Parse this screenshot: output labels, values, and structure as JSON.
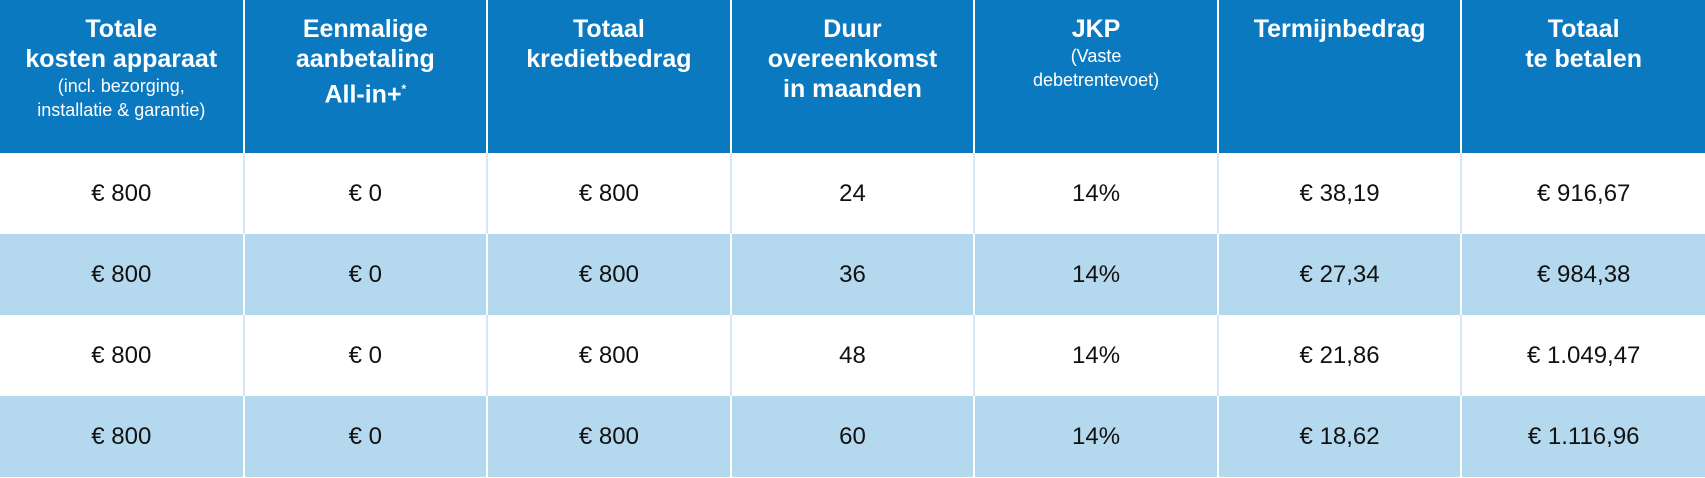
{
  "table": {
    "columns": [
      {
        "title": [
          "Totale",
          "kosten apparaat"
        ],
        "subtitle": [
          "(incl. bezorging,",
          "installatie & garantie)"
        ]
      },
      {
        "title": [
          "Eenmalige",
          "aanbetaling",
          "All-in+"
        ],
        "marker": "*"
      },
      {
        "title": [
          "Totaal",
          "kredietbedrag"
        ]
      },
      {
        "title": [
          "Duur",
          "overeenkomst",
          "in maanden"
        ]
      },
      {
        "title": [
          "JKP"
        ],
        "subtitle": [
          "(Vaste",
          "debetrentevoet)"
        ]
      },
      {
        "title": [
          "Termijnbedrag"
        ]
      },
      {
        "title": [
          "Totaal",
          "te betalen"
        ]
      }
    ],
    "rows": [
      [
        "€ 800",
        "€ 0",
        "€ 800",
        "24",
        "14%",
        "€ 38,19",
        "€ 916,67"
      ],
      [
        "€ 800",
        "€ 0",
        "€ 800",
        "36",
        "14%",
        "€ 27,34",
        "€ 984,38"
      ],
      [
        "€ 800",
        "€ 0",
        "€ 800",
        "48",
        "14%",
        "€ 21,86",
        "€ 1.049,47"
      ],
      [
        "€ 800",
        "€ 0",
        "€ 800",
        "60",
        "14%",
        "€ 18,62",
        "€ 1.116,96"
      ]
    ]
  }
}
